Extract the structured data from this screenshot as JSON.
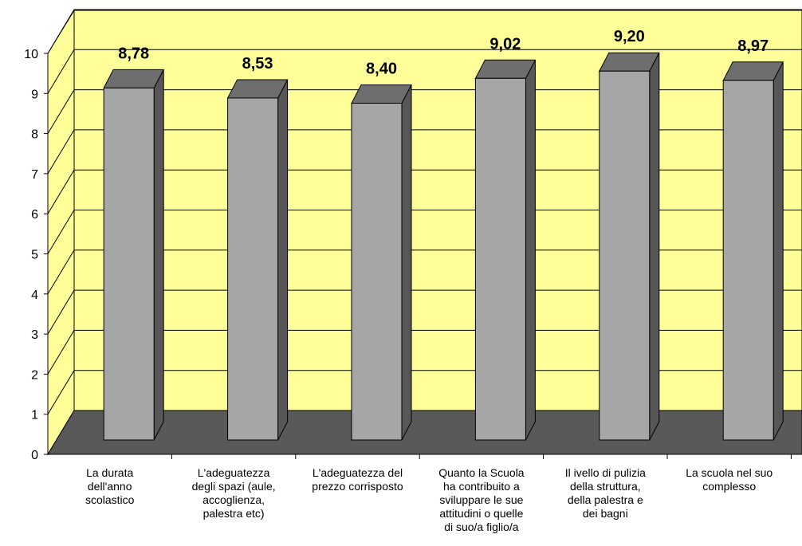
{
  "chart_data": {
    "type": "bar",
    "categories": [
      "La durata\ndell'anno\nscolastico",
      "L'adeguatezza\ndegli spazi (aule,\naccoglienza,\npalestra etc)",
      "L'adeguatezza del\nprezzo corrisposto",
      "Quanto la Scuola\nha contribuito a\nsviluppare le sue\nattitudini o quelle\ndi suo/a figlio/a",
      "Il ivello di pulizia\ndella struttura,\ndella palestra e\ndei bagni",
      "La scuola nel suo\ncomplesso"
    ],
    "values": [
      8.78,
      8.53,
      8.4,
      9.02,
      9.2,
      8.97
    ],
    "value_labels": [
      "8,78",
      "8,53",
      "8,40",
      "9,02",
      "9,20",
      "8,97"
    ],
    "y_ticks": [
      "0",
      "1",
      "2",
      "3",
      "4",
      "5",
      "6",
      "7",
      "8",
      "9",
      "10"
    ],
    "ylim": [
      0,
      10
    ],
    "grid": true,
    "legend": "none",
    "title": "",
    "xlabel": "",
    "ylabel": "",
    "colors": {
      "wall": "#ffff99",
      "floor": "#595959",
      "bar_front": "#a6a6a6",
      "bar_top": "#6e6e6e",
      "bar_side": "#575757",
      "grid": "#000000"
    }
  }
}
